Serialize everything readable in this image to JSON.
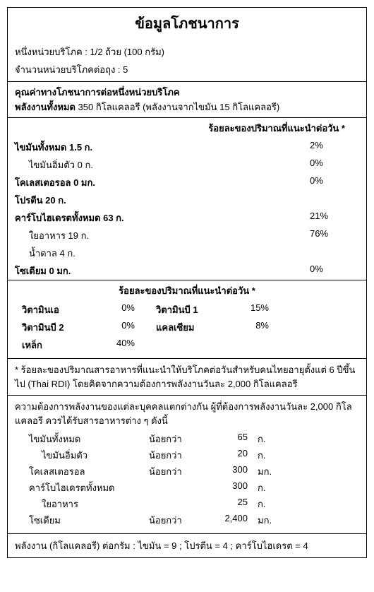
{
  "title": "ข้อมูลโภชนาการ",
  "serving": {
    "size_label": "หนึ่งหน่วยบริโภค : 1/2 ถ้วย (100 กรัม)",
    "per_container_label": "จำนวนหน่วยบริโภคต่อถุง  : 5"
  },
  "amount_header": "คุณค่าทางโภชนาการต่อหนึ่งหน่วยบริโภค",
  "energy_line": "พลังงานทั้งหมด 350 กิโลแคลอรี (พลังงานจากไขมัน 15 กิโลแคลอรี)",
  "dv_header": "ร้อยละของปริมาณที่แนะนำต่อวัน *",
  "nutrients": [
    {
      "label": "ไขมันทั้งหมด 1.5 ก.",
      "dv": "2%",
      "bold": true,
      "indent": 0
    },
    {
      "label": "ไขมันอิ่มตัว 0 ก.",
      "dv": "0%",
      "bold": false,
      "indent": 1
    },
    {
      "label": "โคเลสเตอรอล 0 มก.",
      "dv": "0%",
      "bold": true,
      "indent": 0
    },
    {
      "label": "โปรตีน 20 ก.",
      "dv": "",
      "bold": true,
      "indent": 0
    },
    {
      "label": "คาร์โบไฮเดรตทั้งหมด 63 ก.",
      "dv": "21%",
      "bold": true,
      "indent": 0
    },
    {
      "label": "ใยอาหาร 19 ก.",
      "dv": "76%",
      "bold": false,
      "indent": 1
    },
    {
      "label": "น้ำตาล 4 ก.",
      "dv": "",
      "bold": false,
      "indent": 1
    },
    {
      "label": "โซเดียม 0 มก.",
      "dv": "0%",
      "bold": true,
      "indent": 0
    }
  ],
  "vit_header": "ร้อยละของปริมาณที่แนะนำต่อวัน *",
  "vitamins": [
    {
      "name": "วิตามินเอ",
      "val": "0%"
    },
    {
      "name": "วิตามินบี 1",
      "val": "15%"
    },
    {
      "name": "วิตามินบี 2",
      "val": "0%"
    },
    {
      "name": "แคลเซียม",
      "val": "8%"
    },
    {
      "name": "เหล็ก",
      "val": "40%"
    },
    {
      "name": "",
      "val": ""
    }
  ],
  "rdi_note": "* ร้อยละของปริมาณสารอาหารที่แนะนำให้บริโภคต่อวันสำหรับคนไทยอายุตั้งแต่ 6 ปีขึ้นไป (Thai RDI) โดยคิดจากความต้องการพลังงานวันละ 2,000 กิโลแคลอรี",
  "needs_intro": "ความต้องการพลังงานของแต่ละบุคคลแตกต่างกัน ผู้ที่ต้องการพลังงานวันละ 2,000 กิโลแคลอรี ควรได้รับสารอาหารต่าง ๆ ดังนี้",
  "needs": [
    {
      "label": "ไขมันทั้งหมด",
      "op": "น้อยกว่า",
      "num": "65",
      "unit": "ก.",
      "indent": 0
    },
    {
      "label": "ไขมันอิ่มตัว",
      "op": "น้อยกว่า",
      "num": "20",
      "unit": "ก.",
      "indent": 1
    },
    {
      "label": "โคเลสเตอรอล",
      "op": "น้อยกว่า",
      "num": "300",
      "unit": "มก.",
      "indent": 0
    },
    {
      "label": "คาร์โบไฮเดรตทั้งหมด",
      "op": "",
      "num": "300",
      "unit": "ก.",
      "indent": 0
    },
    {
      "label": "ใยอาหาร",
      "op": "",
      "num": "25",
      "unit": "ก.",
      "indent": 1
    },
    {
      "label": "โซเดียม",
      "op": "น้อยกว่า",
      "num": "2,400",
      "unit": "มก.",
      "indent": 0
    }
  ],
  "cal_per_gram": "พลังงาน  (กิโลแคลอรี)  ต่อกรัม  :  ไขมัน = 9 ;   โปรตีน = 4 ;   คาร์โบไฮเดรต = 4"
}
